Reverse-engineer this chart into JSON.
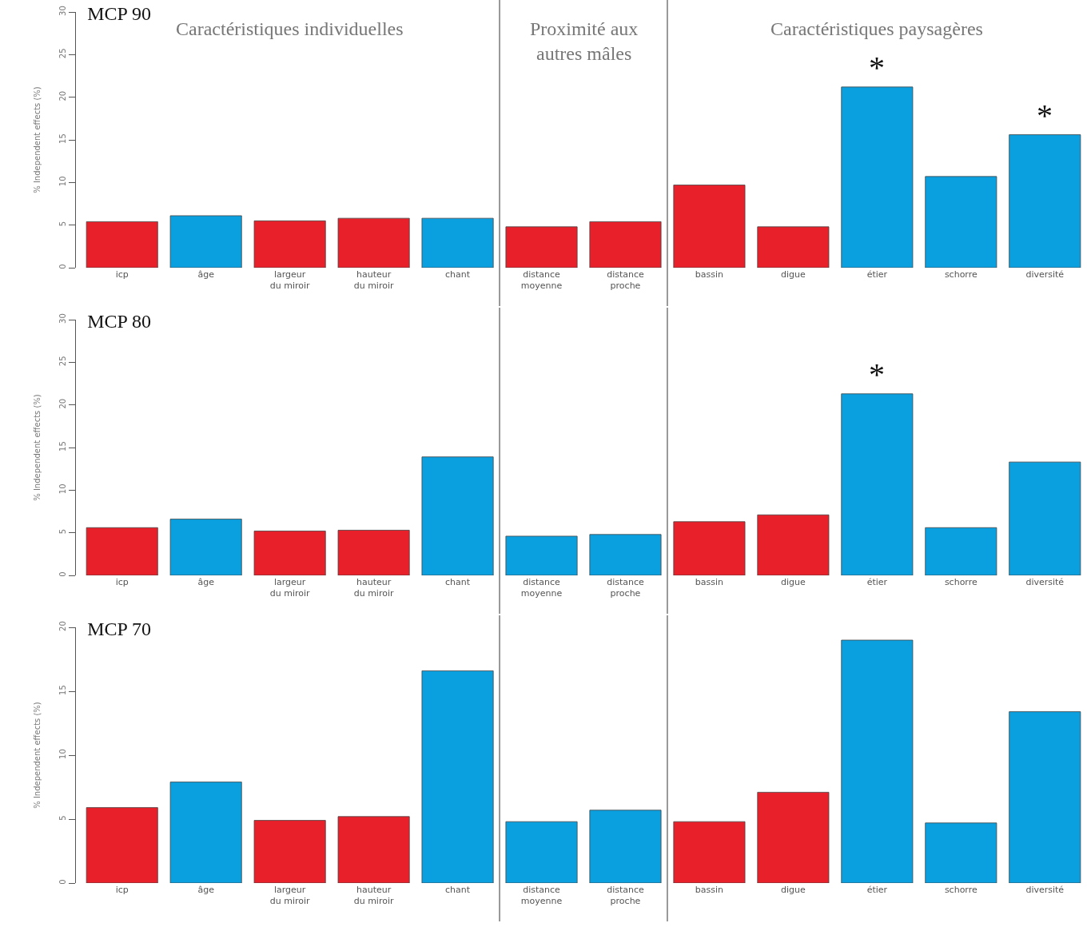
{
  "chart_data": [
    {
      "type": "bar",
      "title": "MCP 90",
      "ylabel": "% Independent effects (%)",
      "categories": [
        "icp",
        "âge",
        "largeur du miroir",
        "hauteur du miroir",
        "chant",
        "distance moyenne",
        "distance proche",
        "bassin",
        "digue",
        "étier",
        "schorre",
        "diversité"
      ],
      "values": [
        5.4,
        6.1,
        5.5,
        5.8,
        5.8,
        4.8,
        5.4,
        9.7,
        4.8,
        21.2,
        10.7,
        15.6
      ],
      "colors": [
        "#e8202a",
        "#0aa0e0",
        "#e8202a",
        "#e8202a",
        "#0aa0e0",
        "#e8202a",
        "#e8202a",
        "#e8202a",
        "#e8202a",
        "#0aa0e0",
        "#0aa0e0",
        "#0aa0e0"
      ],
      "ylim": [
        0,
        30
      ],
      "yticks": [
        0,
        5,
        10,
        15,
        20,
        25,
        30
      ],
      "annotations": [
        "Caractéristiques individuelles",
        "Proximité aux autres mâles",
        "Caractéristiques paysagères",
        {
          "text": "*",
          "x": "étier",
          "y": 21.2
        },
        {
          "text": "*",
          "x": "diversité",
          "y": 15.6
        }
      ]
    },
    {
      "type": "bar",
      "title": "MCP 80",
      "ylabel": "% Independent effects (%)",
      "categories": [
        "icp",
        "âge",
        "largeur du miroir",
        "hauteur du miroir",
        "chant",
        "distance moyenne",
        "distance proche",
        "bassin",
        "digue",
        "étier",
        "schorre",
        "diversité"
      ],
      "values": [
        5.6,
        6.6,
        5.2,
        5.3,
        13.9,
        4.6,
        4.8,
        6.3,
        7.1,
        21.3,
        5.6,
        13.3
      ],
      "colors": [
        "#e8202a",
        "#0aa0e0",
        "#e8202a",
        "#e8202a",
        "#0aa0e0",
        "#0aa0e0",
        "#0aa0e0",
        "#e8202a",
        "#e8202a",
        "#0aa0e0",
        "#0aa0e0",
        "#0aa0e0"
      ],
      "ylim": [
        0,
        30
      ],
      "yticks": [
        0,
        5,
        10,
        15,
        20,
        25,
        30
      ],
      "annotations": [
        {
          "text": "*",
          "x": "étier",
          "y": 21.3
        }
      ]
    },
    {
      "type": "bar",
      "title": "MCP 70",
      "ylabel": "% Independent effects (%)",
      "categories": [
        "icp",
        "âge",
        "largeur du miroir",
        "hauteur du miroir",
        "chant",
        "distance moyenne",
        "distance proche",
        "bassin",
        "digue",
        "étier",
        "schorre",
        "diversité"
      ],
      "values": [
        5.9,
        7.9,
        4.9,
        5.2,
        16.6,
        4.8,
        5.7,
        4.8,
        7.1,
        19.0,
        4.7,
        13.4
      ],
      "colors": [
        "#e8202a",
        "#0aa0e0",
        "#e8202a",
        "#e8202a",
        "#0aa0e0",
        "#0aa0e0",
        "#0aa0e0",
        "#e8202a",
        "#e8202a",
        "#0aa0e0",
        "#0aa0e0",
        "#0aa0e0"
      ],
      "ylim": [
        0,
        20
      ],
      "yticks": [
        0,
        5,
        10,
        15,
        20
      ]
    }
  ]
}
